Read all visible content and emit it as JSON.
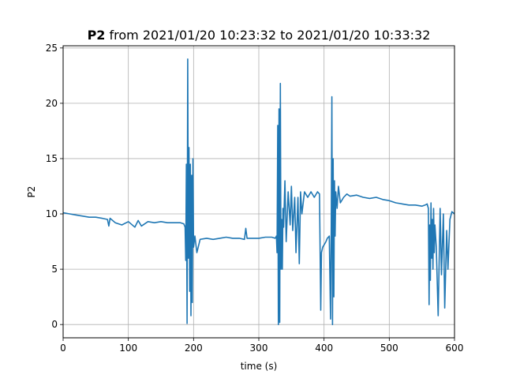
{
  "chart_data": {
    "type": "line",
    "title_bold": "P2",
    "title_rest": " from 2021/01/20 10:23:32 to 2021/01/20 10:33:32",
    "xlabel": "time (s)",
    "ylabel": "P2",
    "xlim": [
      0,
      600
    ],
    "ylim": [
      -1.2,
      25.2
    ],
    "xticks": [
      0,
      100,
      200,
      300,
      400,
      500,
      600
    ],
    "xtick_labels": [
      "0",
      "100",
      "200",
      "300",
      "400",
      "500",
      "600"
    ],
    "yticks": [
      0,
      5,
      10,
      15,
      20,
      25
    ],
    "ytick_labels": [
      "0",
      "5",
      "10",
      "15",
      "20",
      "25"
    ],
    "grid": true,
    "series": [
      {
        "color": "#1f77b4",
        "x": [
          0,
          10,
          20,
          30,
          40,
          50,
          60,
          68,
          70,
          72,
          80,
          90,
          100,
          110,
          115,
          120,
          130,
          140,
          150,
          160,
          170,
          180,
          185,
          187,
          188,
          189,
          190,
          191,
          192,
          193,
          194,
          195,
          196,
          197,
          198,
          199,
          200,
          202,
          205,
          210,
          220,
          230,
          240,
          250,
          260,
          270,
          278,
          280,
          282,
          290,
          300,
          310,
          320,
          325,
          327,
          328,
          329,
          330,
          331,
          332,
          333,
          334,
          335,
          336,
          337,
          338,
          340,
          342,
          345,
          348,
          350,
          352,
          355,
          357,
          360,
          362,
          364,
          366,
          370,
          375,
          380,
          385,
          390,
          393,
          395,
          396,
          398,
          400,
          403,
          405,
          408,
          410,
          411,
          412,
          413,
          414,
          415,
          416,
          417,
          418,
          420,
          422,
          425,
          430,
          435,
          440,
          450,
          460,
          470,
          480,
          490,
          500,
          510,
          520,
          530,
          540,
          550,
          555,
          558,
          560,
          561,
          562,
          563,
          564,
          565,
          566,
          567,
          568,
          569,
          570,
          572,
          575,
          578,
          580,
          583,
          585,
          588,
          590,
          593,
          596,
          600
        ],
        "y": [
          10.1,
          10.0,
          9.9,
          9.8,
          9.7,
          9.7,
          9.6,
          9.5,
          8.9,
          9.6,
          9.2,
          9.0,
          9.3,
          8.8,
          9.4,
          8.9,
          9.3,
          9.2,
          9.3,
          9.2,
          9.2,
          9.2,
          9.1,
          8.8,
          5.8,
          14.5,
          0.1,
          24.0,
          6.0,
          16.0,
          3.0,
          14.5,
          0.8,
          13.5,
          2.0,
          15.0,
          7.0,
          8.0,
          6.5,
          7.7,
          7.8,
          7.7,
          7.8,
          7.9,
          7.8,
          7.8,
          7.7,
          8.7,
          7.8,
          7.8,
          7.8,
          7.9,
          7.9,
          7.8,
          8.0,
          6.5,
          18.0,
          0.0,
          19.5,
          0.2,
          21.8,
          5.0,
          9.5,
          5.0,
          10.5,
          8.8,
          13.0,
          7.5,
          12.0,
          9.0,
          12.5,
          8.5,
          11.5,
          6.5,
          11.5,
          5.5,
          12.0,
          10.0,
          12.0,
          11.5,
          12.0,
          11.5,
          12.0,
          11.8,
          1.3,
          6.5,
          7.0,
          7.2,
          7.5,
          7.8,
          8.0,
          0.5,
          9.0,
          20.6,
          0.0,
          15.0,
          2.5,
          13.0,
          8.0,
          12.0,
          10.5,
          12.5,
          11.0,
          11.5,
          11.8,
          11.6,
          11.7,
          11.5,
          11.4,
          11.5,
          11.3,
          11.2,
          11.0,
          10.9,
          10.8,
          10.8,
          10.7,
          10.8,
          10.9,
          10.5,
          1.8,
          9.0,
          4.0,
          11.0,
          6.0,
          9.5,
          5.0,
          10.5,
          6.5,
          9.0,
          7.0,
          0.8,
          10.5,
          4.5,
          10.0,
          1.5,
          8.5,
          5.0,
          9.5,
          10.2,
          10.0
        ]
      }
    ]
  }
}
